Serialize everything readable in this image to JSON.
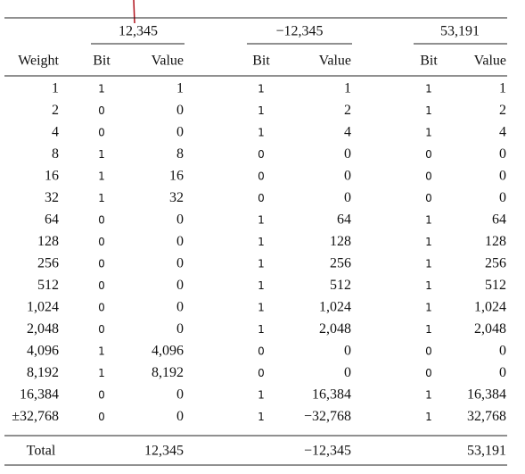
{
  "table": {
    "groups": [
      "12,345",
      "−12,345",
      "53,191"
    ],
    "columns": [
      "Weight",
      "Bit",
      "Value",
      "Bit",
      "Value",
      "Bit",
      "Value"
    ],
    "rows": [
      [
        "1",
        "1",
        "1",
        "1",
        "1",
        "1",
        "1"
      ],
      [
        "2",
        "0",
        "0",
        "1",
        "2",
        "1",
        "2"
      ],
      [
        "4",
        "0",
        "0",
        "1",
        "4",
        "1",
        "4"
      ],
      [
        "8",
        "1",
        "8",
        "0",
        "0",
        "0",
        "0"
      ],
      [
        "16",
        "1",
        "16",
        "0",
        "0",
        "0",
        "0"
      ],
      [
        "32",
        "1",
        "32",
        "0",
        "0",
        "0",
        "0"
      ],
      [
        "64",
        "0",
        "0",
        "1",
        "64",
        "1",
        "64"
      ],
      [
        "128",
        "0",
        "0",
        "1",
        "128",
        "1",
        "128"
      ],
      [
        "256",
        "0",
        "0",
        "1",
        "256",
        "1",
        "256"
      ],
      [
        "512",
        "0",
        "0",
        "1",
        "512",
        "1",
        "512"
      ],
      [
        "1,024",
        "0",
        "0",
        "1",
        "1,024",
        "1",
        "1,024"
      ],
      [
        "2,048",
        "0",
        "0",
        "1",
        "2,048",
        "1",
        "2,048"
      ],
      [
        "4,096",
        "1",
        "4,096",
        "0",
        "0",
        "0",
        "0"
      ],
      [
        "8,192",
        "1",
        "8,192",
        "0",
        "0",
        "0",
        "0"
      ],
      [
        "16,384",
        "0",
        "0",
        "1",
        "16,384",
        "1",
        "16,384"
      ],
      [
        "±32,768",
        "0",
        "0",
        "1",
        "−32,768",
        "1",
        "32,768"
      ]
    ],
    "total": [
      "Total",
      "12,345",
      "−12,345",
      "53,191"
    ]
  }
}
